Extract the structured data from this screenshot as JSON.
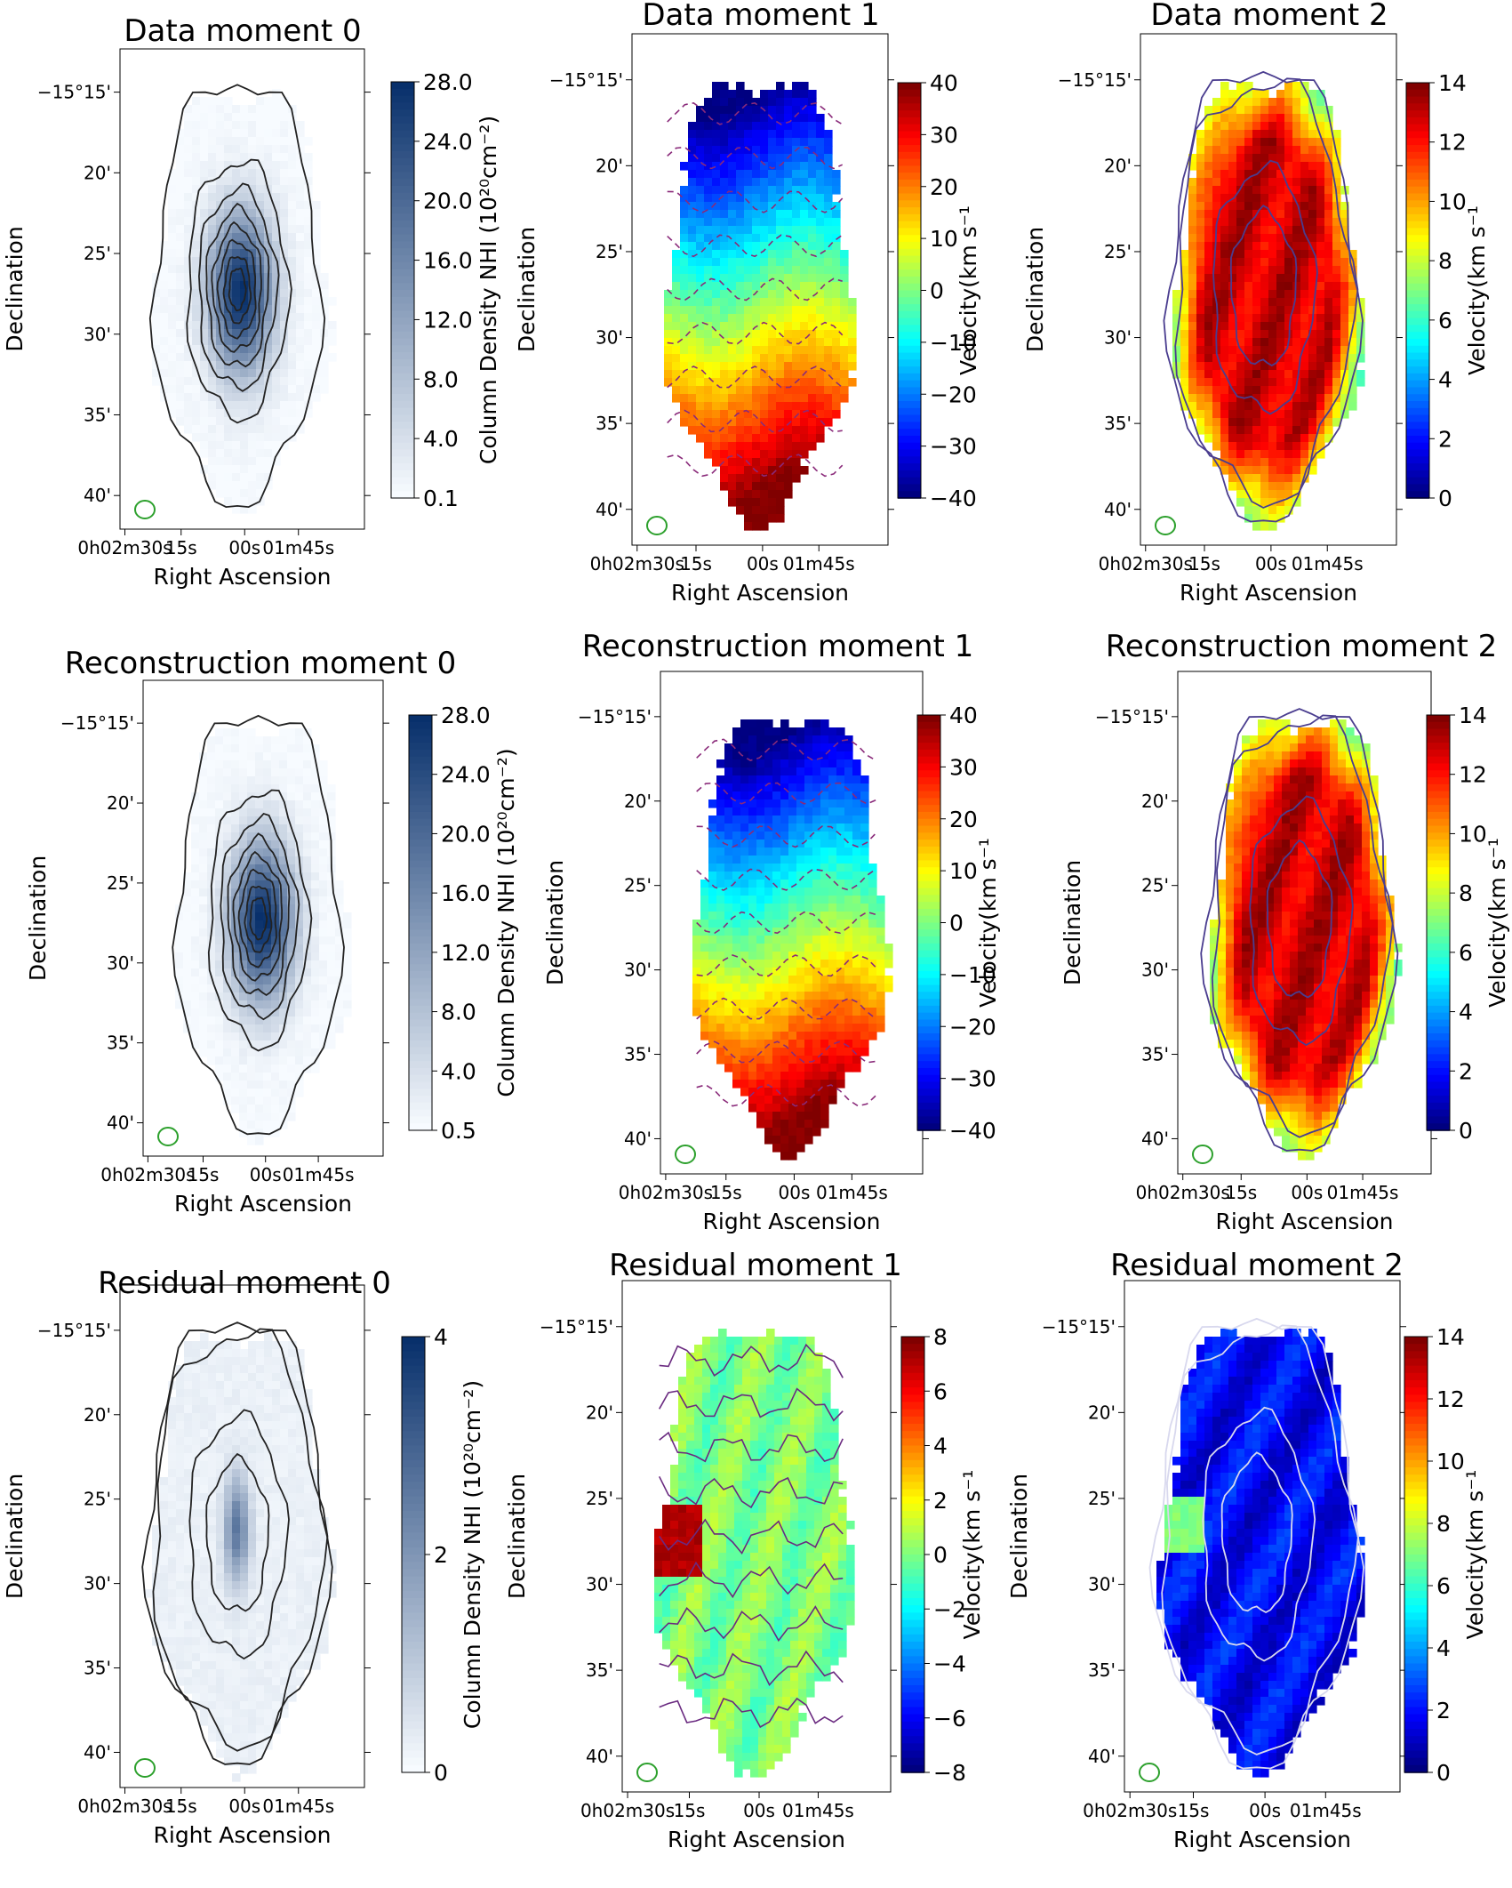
{
  "common": {
    "ra_ticks": [
      "0h02m30s",
      "15s",
      "00s",
      "01m45s"
    ],
    "dec_ticks": [
      "−15°15'",
      "20'",
      "25'",
      "30'",
      "35'",
      "40'"
    ],
    "xlabel": "Right Ascension",
    "ylabel": "Declination",
    "beam_color": "#2ca02c"
  },
  "chart_data": [
    {
      "id": "p00",
      "type": "heatmap",
      "title": "Data moment 0",
      "colormap": "Blues",
      "field": "moment0",
      "contour_color": "#222222",
      "contour_style": "solid",
      "colorbar": {
        "label": "Column Density NHI (10²⁰cm⁻²)",
        "vmin": 0,
        "vmax": 28,
        "ticks": [
          "28.0",
          "24.0",
          "20.0",
          "16.0",
          "12.0",
          "8.0",
          "4.0",
          "0.1"
        ]
      }
    },
    {
      "id": "p01",
      "type": "heatmap",
      "title": "Data moment 1",
      "colormap": "jet",
      "field": "moment1",
      "contour_color": "#8a2a7a",
      "contour_style": "dashed",
      "colorbar": {
        "label": "Velocity(km s⁻¹",
        "vmin": -40,
        "vmax": 40,
        "ticks": [
          "40",
          "30",
          "20",
          "10",
          "0",
          "−10",
          "−20",
          "−30",
          "−40"
        ]
      }
    },
    {
      "id": "p02",
      "type": "heatmap",
      "title": "Data  moment 2",
      "colormap": "jet",
      "field": "moment2",
      "contour_color": "#4a3d8f",
      "contour_style": "solid",
      "colorbar": {
        "label": "Velocity(km s⁻¹",
        "vmin": 0,
        "vmax": 14,
        "ticks": [
          "14",
          "12",
          "10",
          "8",
          "6",
          "4",
          "2",
          "0"
        ]
      }
    },
    {
      "id": "p10",
      "type": "heatmap",
      "title": "Reconstruction moment 0",
      "colormap": "Blues",
      "field": "moment0",
      "contour_color": "#222222",
      "contour_style": "solid",
      "colorbar": {
        "label": "Column Density NHI (10²⁰cm⁻²)",
        "vmin": 0,
        "vmax": 28,
        "ticks": [
          "28.0",
          "24.0",
          "20.0",
          "16.0",
          "12.0",
          "8.0",
          "4.0",
          "0.5"
        ]
      }
    },
    {
      "id": "p11",
      "type": "heatmap",
      "title": "Reconstruction moment 1",
      "colormap": "jet",
      "field": "moment1",
      "contour_color": "#8a2a7a",
      "contour_style": "dashed",
      "colorbar": {
        "label": "Velocity(km s⁻¹",
        "vmin": -40,
        "vmax": 40,
        "ticks": [
          "40",
          "30",
          "20",
          "10",
          "0",
          "−10",
          "−20",
          "−30",
          "−40"
        ]
      }
    },
    {
      "id": "p12",
      "type": "heatmap",
      "title": "Reconstruction  moment 2",
      "colormap": "jet",
      "field": "moment2",
      "contour_color": "#4a3d8f",
      "contour_style": "solid",
      "colorbar": {
        "label": "Velocity(km s⁻¹",
        "vmin": 0,
        "vmax": 14,
        "ticks": [
          "14",
          "12",
          "10",
          "8",
          "6",
          "4",
          "2",
          "0"
        ]
      }
    },
    {
      "id": "p20",
      "type": "heatmap",
      "title": "Residual moment 0",
      "colormap": "Blues",
      "field": "resid0",
      "contour_color": "#222222",
      "contour_style": "solid",
      "colorbar": {
        "label": "Column Density NHI (10²⁰cm⁻²)",
        "vmin": 0,
        "vmax": 4,
        "ticks": [
          "4",
          "2",
          "0"
        ]
      }
    },
    {
      "id": "p21",
      "type": "heatmap",
      "title": "Residual moment 1",
      "colormap": "jet",
      "field": "resid1",
      "contour_color": "#6a2a80",
      "contour_style": "solid",
      "colorbar": {
        "label": "Velocity(km s⁻¹",
        "vmin": -8,
        "vmax": 8,
        "ticks": [
          "8",
          "6",
          "4",
          "2",
          "0",
          "−2",
          "−4",
          "−6",
          "−8"
        ]
      }
    },
    {
      "id": "p22",
      "type": "heatmap",
      "title": "Residual  moment 2",
      "colormap": "jet",
      "field": "resid2",
      "contour_color": "#d8d8ee",
      "contour_style": "solid",
      "colorbar": {
        "label": "Velocity(km s⁻¹",
        "vmin": 0,
        "vmax": 14,
        "ticks": [
          "14",
          "12",
          "10",
          "8",
          "6",
          "4",
          "2",
          "0"
        ]
      }
    }
  ]
}
